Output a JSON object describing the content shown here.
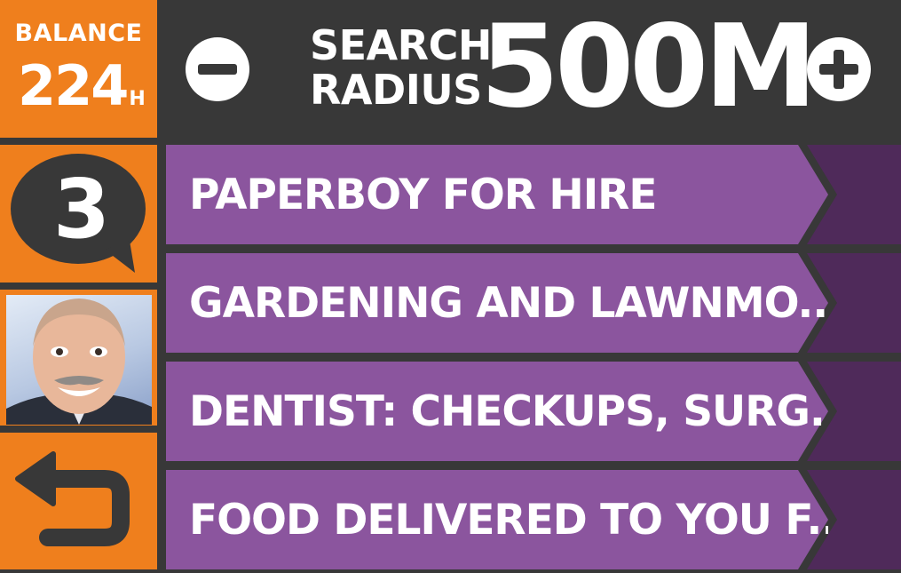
{
  "balance": {
    "label": "BALANCE",
    "value": "224",
    "unit": "H"
  },
  "notifications": {
    "count": "3",
    "icon": "speech-bubble-icon"
  },
  "profile": {
    "avatar_icon": "avatar"
  },
  "navigation": {
    "back_icon": "back-arrow-icon"
  },
  "search": {
    "label_line1": "SEARCH",
    "label_line2": "RADIUS",
    "value": "500M",
    "decrease_icon": "minus-icon",
    "increase_icon": "plus-icon"
  },
  "listings": [
    {
      "title": "PAPERBOY FOR HIRE"
    },
    {
      "title": "GARDENING AND LAWNMO..."
    },
    {
      "title": "DENTIST: CHECKUPS, SURG..."
    },
    {
      "title": "FOOD DELIVERED TO YOU F..."
    }
  ],
  "colors": {
    "background": "#383838",
    "sidebar_orange": "#ef7f1d",
    "item_purple": "#8b559e",
    "item_dark_purple": "#4f2a5a",
    "text": "#ffffff"
  }
}
